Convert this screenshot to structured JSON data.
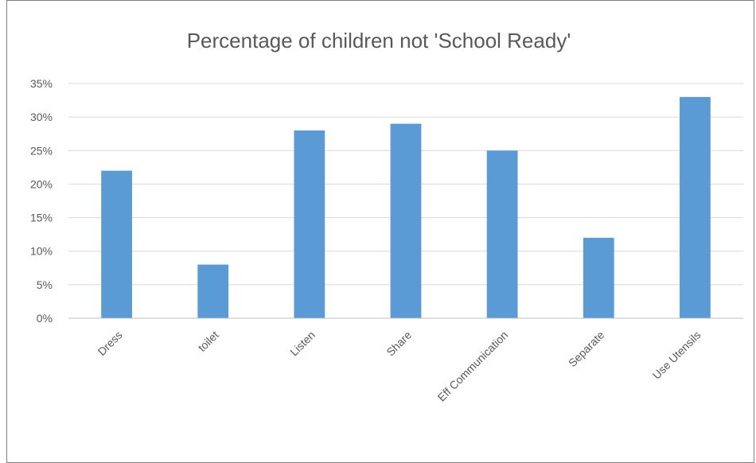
{
  "chart_data": {
    "type": "bar",
    "title": "Percentage of children not 'School Ready'",
    "xlabel": "",
    "ylabel": "",
    "categories": [
      "Dress",
      "toilet",
      "Listen",
      "Share",
      "Eff Communication",
      "Separate",
      "Use Utensils"
    ],
    "values": [
      22,
      8,
      28,
      29,
      25,
      12,
      33
    ],
    "ylim": [
      0,
      35
    ],
    "yticks": [
      0,
      5,
      10,
      15,
      20,
      25,
      30,
      35
    ],
    "ytick_suffix": "%",
    "grid": true,
    "legend": "none",
    "bar_color": "#5b9bd5",
    "grid_color": "#d9d9d9",
    "axis_color": "#bfbfbf"
  }
}
